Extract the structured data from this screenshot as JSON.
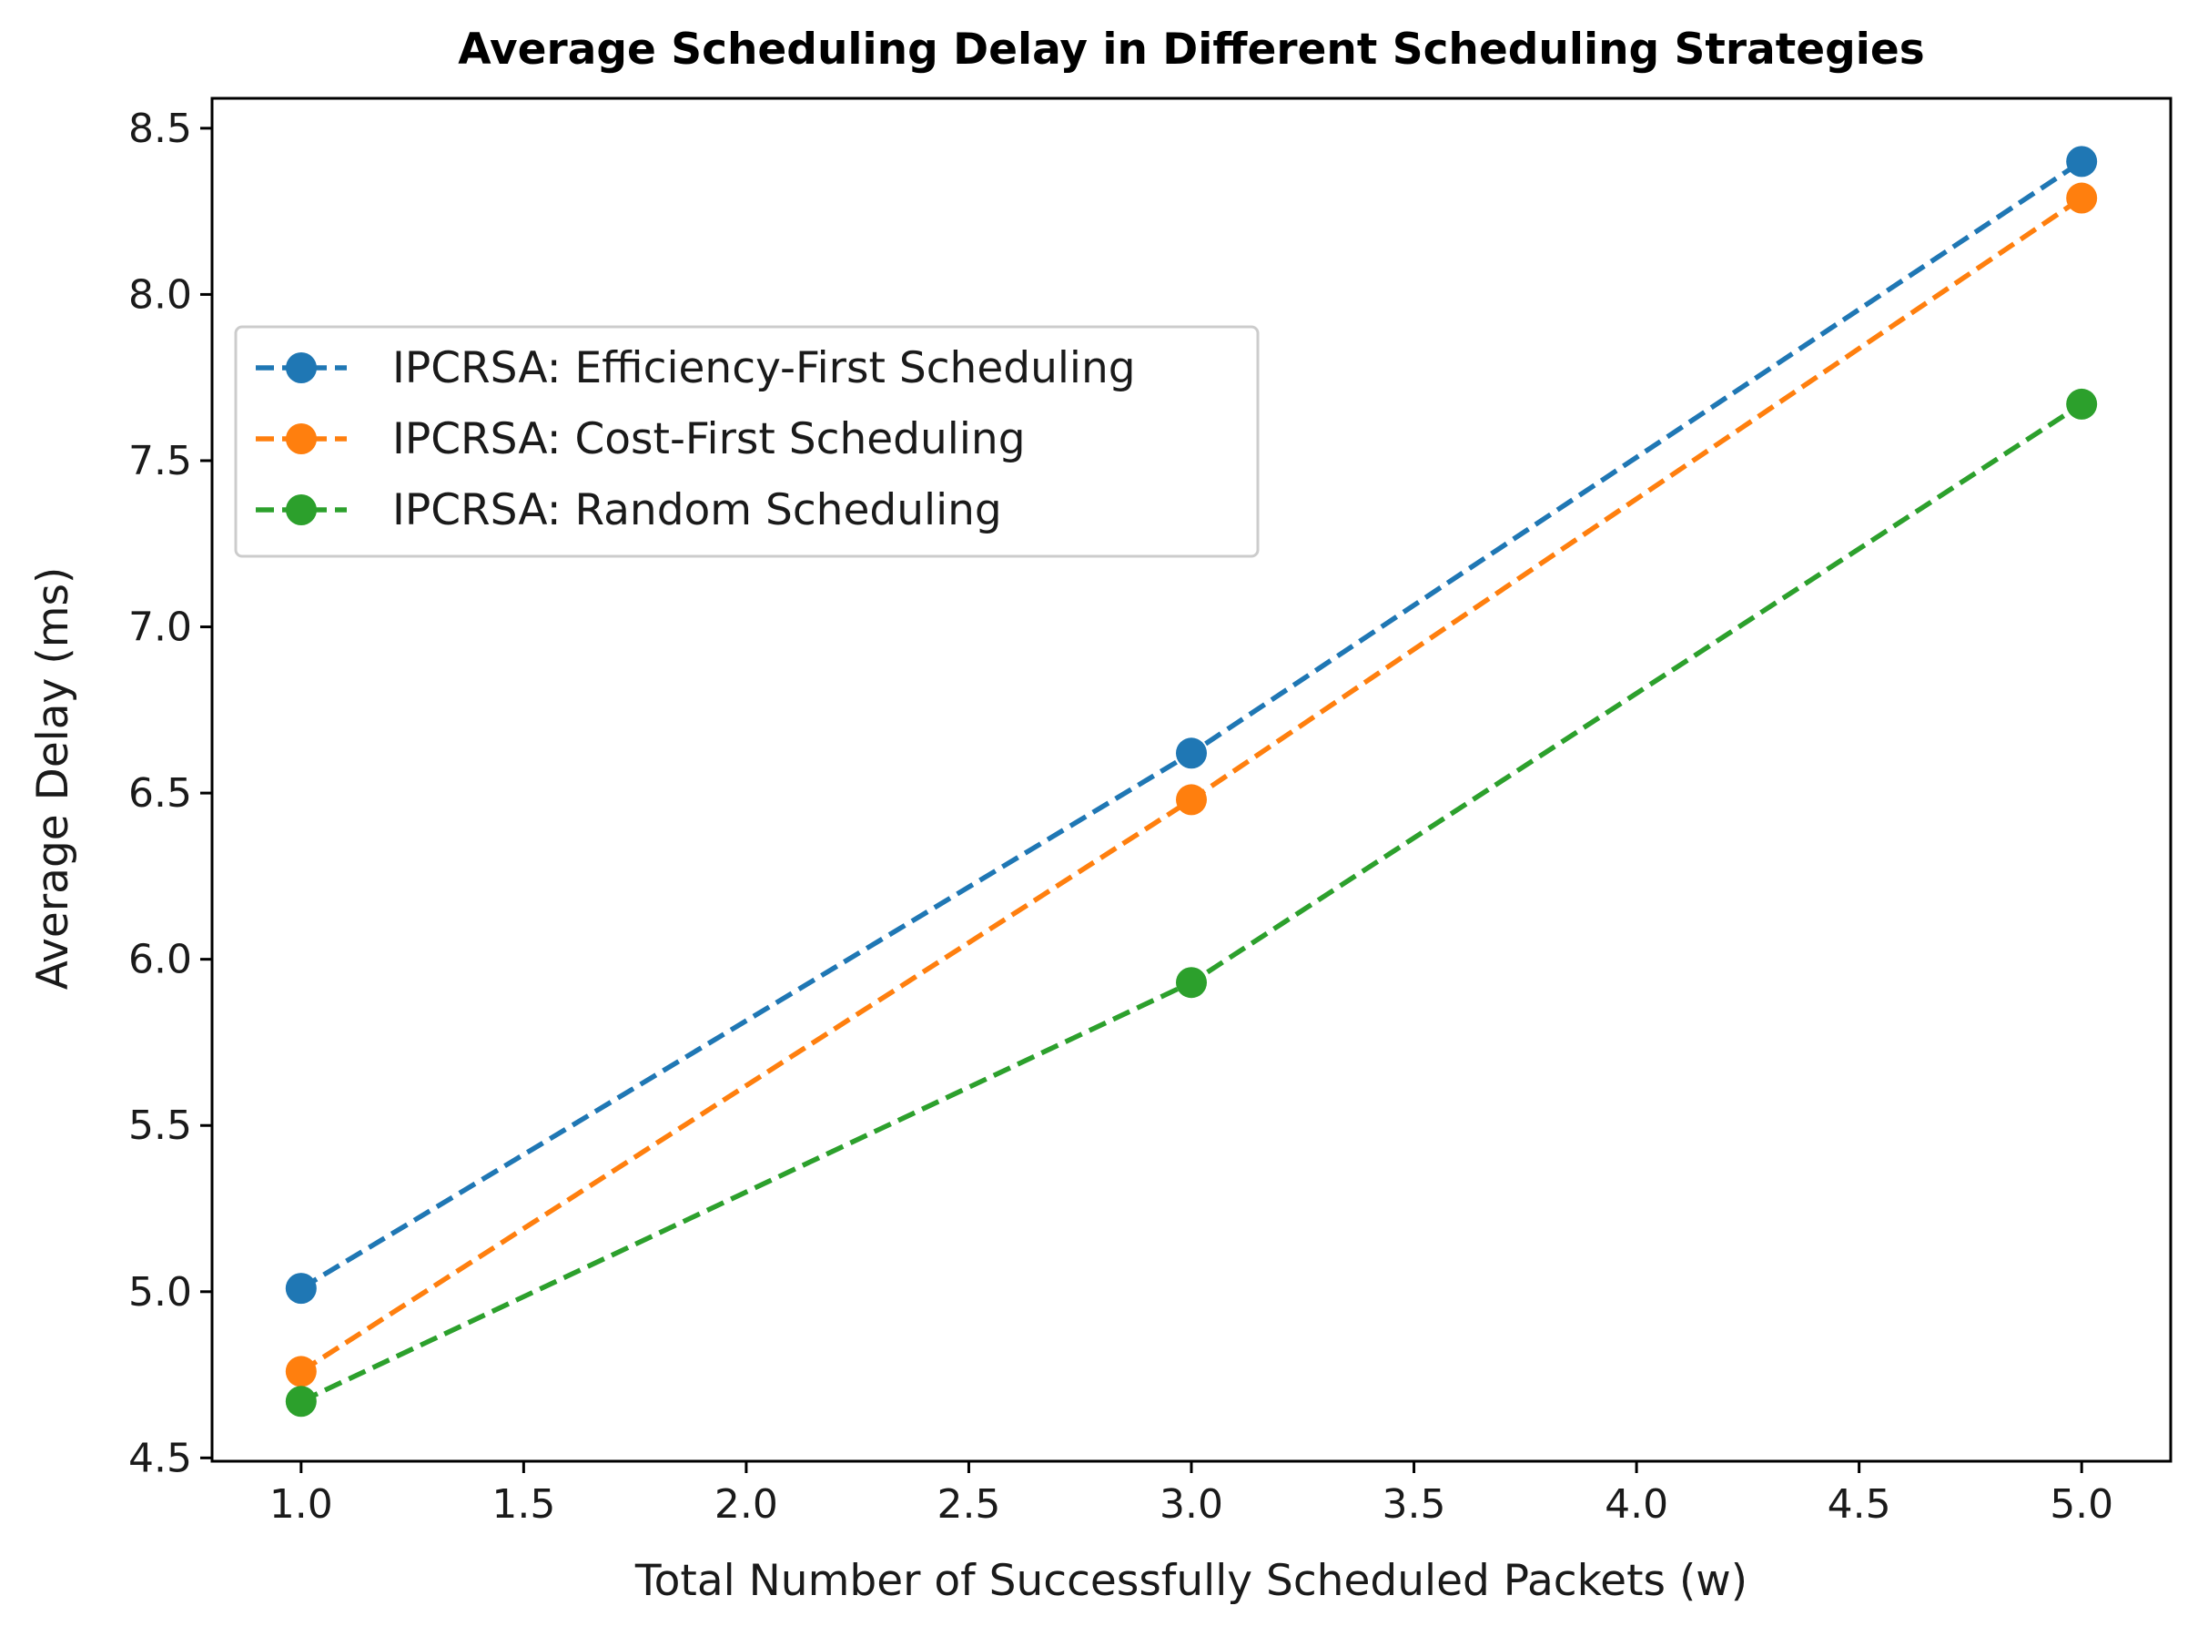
{
  "chart_data": {
    "type": "line",
    "title": "Average Scheduling Delay in Different Scheduling Strategies",
    "xlabel": "Total Number of Successfully Scheduled Packets (w)",
    "ylabel": "Average Delay (ms)",
    "xlim": [
      0.8,
      5.2
    ],
    "ylim": [
      4.49,
      8.59
    ],
    "xticks": [
      1.0,
      1.5,
      2.0,
      2.5,
      3.0,
      3.5,
      4.0,
      4.5,
      5.0
    ],
    "yticks": [
      4.5,
      5.0,
      5.5,
      6.0,
      6.5,
      7.0,
      7.5,
      8.0,
      8.5
    ],
    "xtick_labels": [
      "1.0",
      "1.5",
      "2.0",
      "2.5",
      "3.0",
      "3.5",
      "4.0",
      "4.5",
      "5.0"
    ],
    "ytick_labels": [
      "4.5",
      "5.0",
      "5.5",
      "6.0",
      "6.5",
      "7.0",
      "7.5",
      "8.0",
      "8.5"
    ],
    "grid": false,
    "legend_position": "upper-left",
    "x": [
      1,
      3,
      5
    ],
    "series": [
      {
        "name": "IPCRSA: Efficiency-First Scheduling",
        "color": "#1f77b4",
        "linestyle": "dashed",
        "marker": "circle",
        "values": [
          5.01,
          6.62,
          8.4
        ]
      },
      {
        "name": "IPCRSA: Cost-First Scheduling",
        "color": "#ff7f0e",
        "linestyle": "dashed",
        "marker": "circle",
        "values": [
          4.76,
          6.48,
          8.29
        ]
      },
      {
        "name": "IPCRSA: Random Scheduling",
        "color": "#2ca02c",
        "linestyle": "dashed",
        "marker": "circle",
        "values": [
          4.67,
          5.93,
          7.67
        ]
      }
    ]
  }
}
